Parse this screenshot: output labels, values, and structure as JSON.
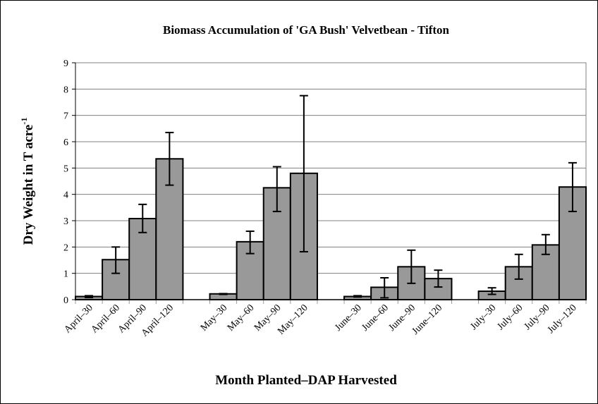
{
  "chart_data": {
    "type": "bar",
    "title": "Biomass Accumulation of 'GA Bush' Velvetbean - Tifton",
    "xlabel": "Month Planted–DAP Harvested",
    "ylabel": "Dry Weight in T acre",
    "ylabel_superscript": "-1",
    "ylim": [
      0,
      9
    ],
    "yticks": [
      "0",
      "1",
      "2",
      "3",
      "4",
      "5",
      "6",
      "7",
      "8",
      "9"
    ],
    "grid": true,
    "bar_color": "#999999",
    "categories": [
      "April–30",
      "April–60",
      "April–90",
      "April–120",
      "",
      "May–30",
      "May–60",
      "May–90",
      "May–120",
      "",
      "June–30",
      "June–60",
      "June–90",
      "June–120",
      "",
      "July–30",
      "July–60",
      "July–90",
      "July–120"
    ],
    "values": [
      0.12,
      1.52,
      3.08,
      5.35,
      null,
      0.22,
      2.2,
      4.25,
      4.8,
      null,
      0.12,
      0.47,
      1.25,
      0.8,
      null,
      0.32,
      1.25,
      2.08,
      4.28
    ],
    "error_low": [
      0.08,
      1.0,
      2.55,
      4.35,
      null,
      0.2,
      1.75,
      3.35,
      1.82,
      null,
      0.1,
      0.07,
      0.62,
      0.48,
      null,
      0.2,
      0.78,
      1.72,
      3.35
    ],
    "error_high": [
      0.15,
      2.0,
      3.62,
      6.35,
      null,
      0.23,
      2.6,
      5.05,
      7.75,
      null,
      0.15,
      0.83,
      1.88,
      1.12,
      null,
      0.45,
      1.72,
      2.47,
      5.2
    ]
  }
}
